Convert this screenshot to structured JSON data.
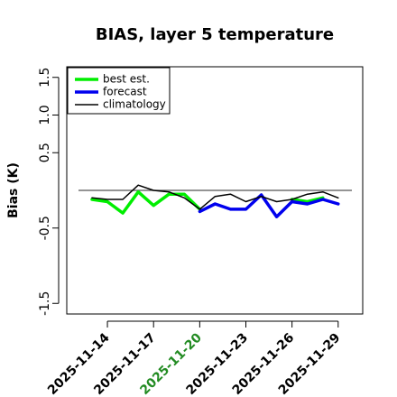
{
  "chart_data": {
    "type": "line",
    "title": "BIAS, layer 5 temperature",
    "xlabel": "",
    "ylabel": "Bias (K)",
    "ylim": [
      -1.6,
      1.6
    ],
    "y_ticks": [
      1.5,
      1.0,
      0.5,
      -0.5,
      -1.5
    ],
    "x_tick_labels": [
      "2025-11-14",
      "2025-11-17",
      "2025-11-20",
      "2025-11-23",
      "2025-11-26",
      "2025-11-29"
    ],
    "x_tick_colors": [
      "#000000",
      "#000000",
      "#228B22",
      "#000000",
      "#000000",
      "#000000"
    ],
    "x": [
      "2025-11-13",
      "2025-11-14",
      "2025-11-15",
      "2025-11-16",
      "2025-11-17",
      "2025-11-18",
      "2025-11-19",
      "2025-11-20",
      "2025-11-21",
      "2025-11-22",
      "2025-11-23",
      "2025-11-24",
      "2025-11-25",
      "2025-11-26",
      "2025-11-27",
      "2025-11-28",
      "2025-11-29"
    ],
    "reference_line": 0.0,
    "legend_position": "top-left",
    "series": [
      {
        "name": "best est.",
        "color": "#00ee00",
        "values": [
          -0.12,
          -0.15,
          -0.3,
          -0.02,
          -0.2,
          -0.05,
          -0.05,
          -0.25,
          null,
          null,
          null,
          null,
          null,
          -0.12,
          -0.15,
          -0.1,
          null
        ]
      },
      {
        "name": "forecast",
        "color": "#0000ee",
        "values": [
          null,
          null,
          null,
          null,
          null,
          null,
          null,
          -0.28,
          -0.18,
          -0.25,
          -0.25,
          -0.06,
          -0.35,
          -0.15,
          -0.18,
          -0.12,
          -0.18
        ]
      },
      {
        "name": "climatology",
        "color": "#000000",
        "values": [
          -0.1,
          -0.12,
          -0.12,
          0.07,
          0.0,
          -0.02,
          -0.1,
          -0.25,
          -0.08,
          -0.05,
          -0.15,
          -0.08,
          -0.15,
          -0.12,
          -0.05,
          -0.02,
          -0.1
        ]
      }
    ]
  }
}
